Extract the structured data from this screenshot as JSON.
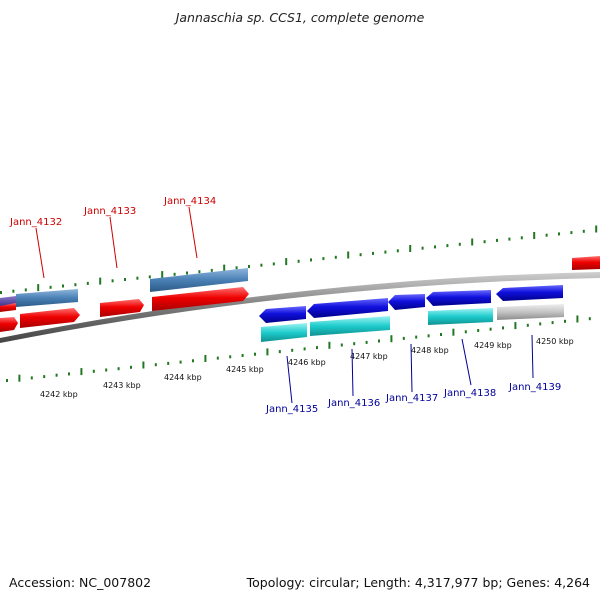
{
  "title": "Jannaschia sp. CCS1, complete genome",
  "footer": {
    "accession": "Accession: NC_007802",
    "topology": "Topology: circular; Length: 4,317,977 bp; Genes: 4,264"
  },
  "colors": {
    "forward_gene": "#ee0000",
    "forward_cds": "#4a80b5",
    "reverse_gene": "#1010dd",
    "reverse_cds": "#1ecccc",
    "pseudo": "#bbbbbb",
    "tick": "#227722",
    "backbone": "#777777",
    "forward_label": "#cc0000",
    "reverse_label": "#000099"
  },
  "kbp_labels": [
    "4242 kbp",
    "4243 kbp",
    "4244 kbp",
    "4245 kbp",
    "4246 kbp",
    "4247 kbp",
    "4248 kbp",
    "4249 kbp",
    "4250 kbp"
  ],
  "forward_genes": [
    {
      "name": "Jann_4132"
    },
    {
      "name": "Jann_4133"
    },
    {
      "name": "Jann_4134"
    }
  ],
  "reverse_genes": [
    {
      "name": "Jann_4135"
    },
    {
      "name": "Jann_4136"
    },
    {
      "name": "Jann_4137"
    },
    {
      "name": "Jann_4138"
    },
    {
      "name": "Jann_4139"
    }
  ]
}
